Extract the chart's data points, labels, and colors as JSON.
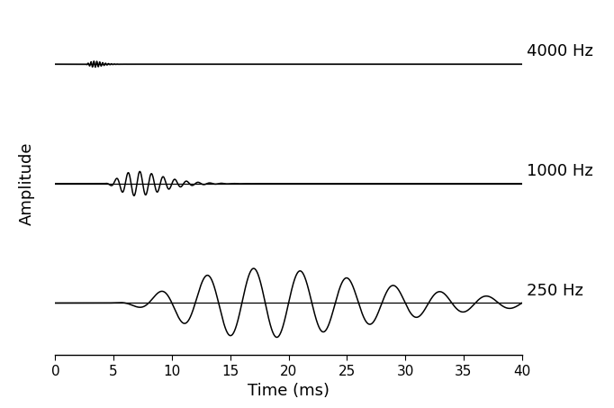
{
  "xlabel": "Time (ms)",
  "ylabel": "Amplitude",
  "xlim": [
    0,
    40
  ],
  "t_start": 0,
  "t_end": 40,
  "dt": 0.005,
  "labels": [
    "4000 Hz",
    "1000 Hz",
    "250 Hz"
  ],
  "freqs_hz": [
    4000,
    1000,
    250
  ],
  "delays_ms": [
    2.5,
    4.0,
    4.0
  ],
  "gammatone_order": [
    4,
    4,
    4
  ],
  "decay_rates": [
    3.5,
    1.0,
    0.22
  ],
  "scale_factors": [
    0.35,
    0.7,
    1.0
  ],
  "line_color": "#000000",
  "bg_color": "#ffffff",
  "line_width": 1.1,
  "tick_label_fontsize": 11,
  "axis_label_fontsize": 13,
  "cf_label_fontsize": 13,
  "xticks": [
    0,
    5,
    10,
    15,
    20,
    25,
    30,
    35,
    40
  ],
  "ylim_scales": [
    6.0,
    3.0,
    1.5
  ]
}
